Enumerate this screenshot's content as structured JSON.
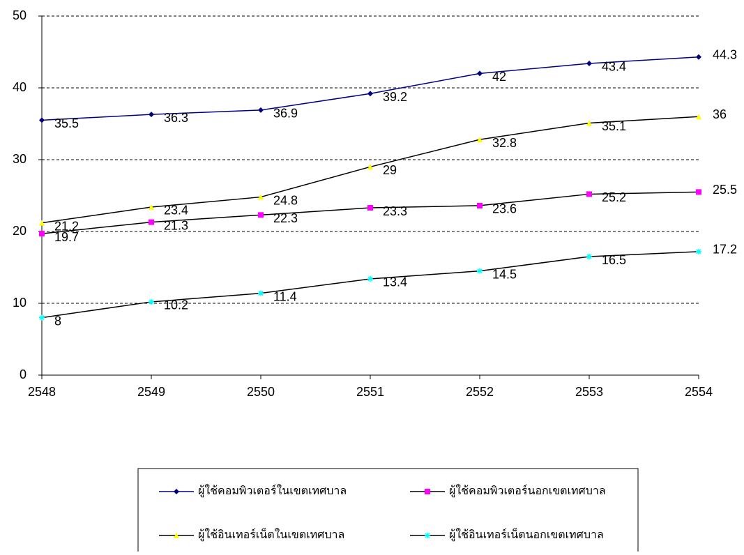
{
  "chart_data": {
    "type": "line",
    "x": [
      2548,
      2549,
      2550,
      2551,
      2552,
      2553,
      2554
    ],
    "xlim": [
      2548,
      2554
    ],
    "xticks": [
      2548,
      2549,
      2550,
      2551,
      2552,
      2553,
      2554
    ],
    "ylim": [
      0,
      50
    ],
    "yticks": [
      0,
      10,
      20,
      30,
      40,
      50
    ],
    "grid": true,
    "series": [
      {
        "name": "ผู้ใช้คอมพิวเตอร์ในเขตเทศบาล",
        "color": "#000080",
        "marker": "diamond",
        "marker_color": "#000080",
        "values": [
          35.5,
          36.3,
          36.9,
          39.2,
          42,
          43.4,
          44.3
        ]
      },
      {
        "name": "ผู้ใช้คอมพิวเตอร์นอกเขตเทศบาล",
        "color": "#000000",
        "marker": "square",
        "marker_color": "#ff00ff",
        "values": [
          19.7,
          21.3,
          22.3,
          23.3,
          23.6,
          25.2,
          25.5
        ]
      },
      {
        "name": "ผู้ใช้อินเทอร์เน็ตในเขตเทศบาล",
        "color": "#000000",
        "marker": "triangle",
        "marker_color": "#ffff00",
        "values": [
          21.2,
          23.4,
          24.8,
          29,
          32.8,
          35.1,
          36
        ]
      },
      {
        "name": "ผู้ใช้อินเทอร์เน็ตนอกเขตเทศบาล",
        "color": "#000000",
        "marker": "cross",
        "marker_color": "#00ffff",
        "values": [
          8,
          10.2,
          11.4,
          13.4,
          14.5,
          16.5,
          17.2
        ]
      }
    ]
  }
}
